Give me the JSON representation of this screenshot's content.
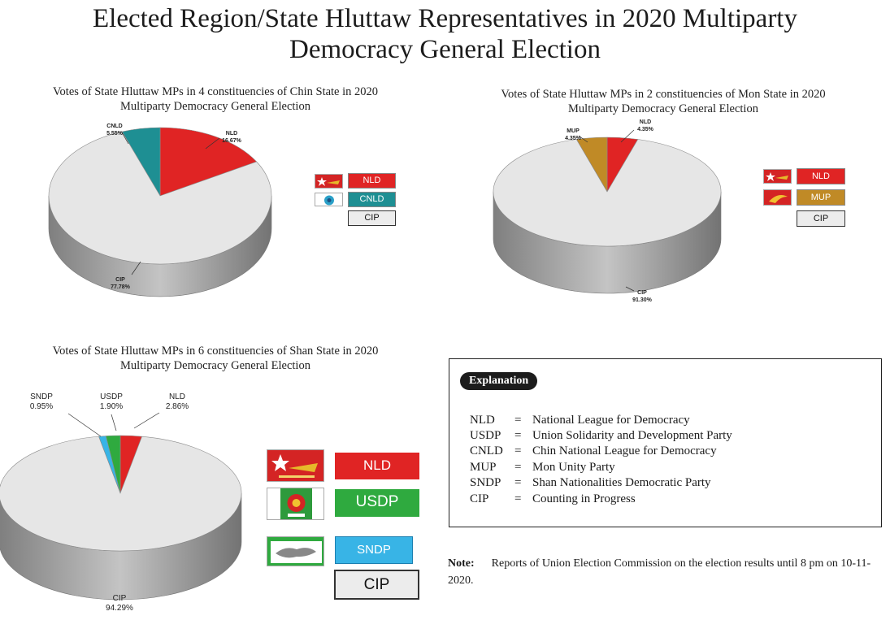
{
  "page_title_line1": "Elected Region/State Hluttaw Representatives in  2020 Multiparty",
  "page_title_line2": "Democracy General Election",
  "colors": {
    "NLD": "#e02424",
    "USDP": "#2faa3f",
    "CNLD": "#1e8f93",
    "MUP": "#c08a26",
    "SNDP": "#38b4e6",
    "CIP": "#e6e6e6"
  },
  "chart_data": [
    {
      "type": "pie",
      "title_line1": "Votes of State Hluttaw MPs in 4 constituencies of Chin State in 2020",
      "title_line2": "Multiparty Democracy General Election",
      "slices": [
        {
          "label": "NLD",
          "value": 16.67,
          "pct": "16.67%"
        },
        {
          "label": "CNLD",
          "value": 5.55,
          "pct": "5.55%"
        },
        {
          "label": "CIP",
          "value": 77.78,
          "pct": "77.78%"
        }
      ],
      "legend": [
        "NLD",
        "CNLD",
        "CIP"
      ]
    },
    {
      "type": "pie",
      "title_line1": "Votes of State Hluttaw MPs in 2 constituencies of Mon State in 2020",
      "title_line2": "Multiparty Democracy General Election",
      "slices": [
        {
          "label": "NLD",
          "value": 4.35,
          "pct": "4.35%"
        },
        {
          "label": "MUP",
          "value": 4.35,
          "pct": "4.35%"
        },
        {
          "label": "CIP",
          "value": 91.3,
          "pct": "91.30%"
        }
      ],
      "legend": [
        "NLD",
        "MUP",
        "CIP"
      ]
    },
    {
      "type": "pie",
      "title_line1": "Votes of State Hluttaw MPs in 6 constituencies of Shan State in 2020",
      "title_line2": "Multiparty Democracy General Election",
      "slices": [
        {
          "label": "NLD",
          "value": 2.86,
          "pct": "2.86%"
        },
        {
          "label": "USDP",
          "value": 1.9,
          "pct": "1.90%"
        },
        {
          "label": "SNDP",
          "value": 0.95,
          "pct": "0.95%"
        },
        {
          "label": "CIP",
          "value": 94.29,
          "pct": "94.29%"
        }
      ],
      "legend": [
        "NLD",
        "USDP",
        "SNDP",
        "CIP"
      ]
    }
  ],
  "explanation": {
    "heading": "Explanation",
    "rows": [
      {
        "abbr": "NLD",
        "eq": "=",
        "full": "National League for Democracy"
      },
      {
        "abbr": "USDP",
        "eq": "=",
        "full": "Union Solidarity and Development Party"
      },
      {
        "abbr": "CNLD",
        "eq": "=",
        "full": "Chin National League for Democracy"
      },
      {
        "abbr": "MUP",
        "eq": "=",
        "full": "Mon Unity Party"
      },
      {
        "abbr": "SNDP",
        "eq": "=",
        "full": "Shan Nationalities Democratic Party"
      },
      {
        "abbr": "CIP",
        "eq": "=",
        "full": "Counting in Progress"
      }
    ]
  },
  "note": {
    "label": "Note:",
    "text": "Reports of Union Election Commission on the election results until 8 pm on 10-11-2020."
  }
}
